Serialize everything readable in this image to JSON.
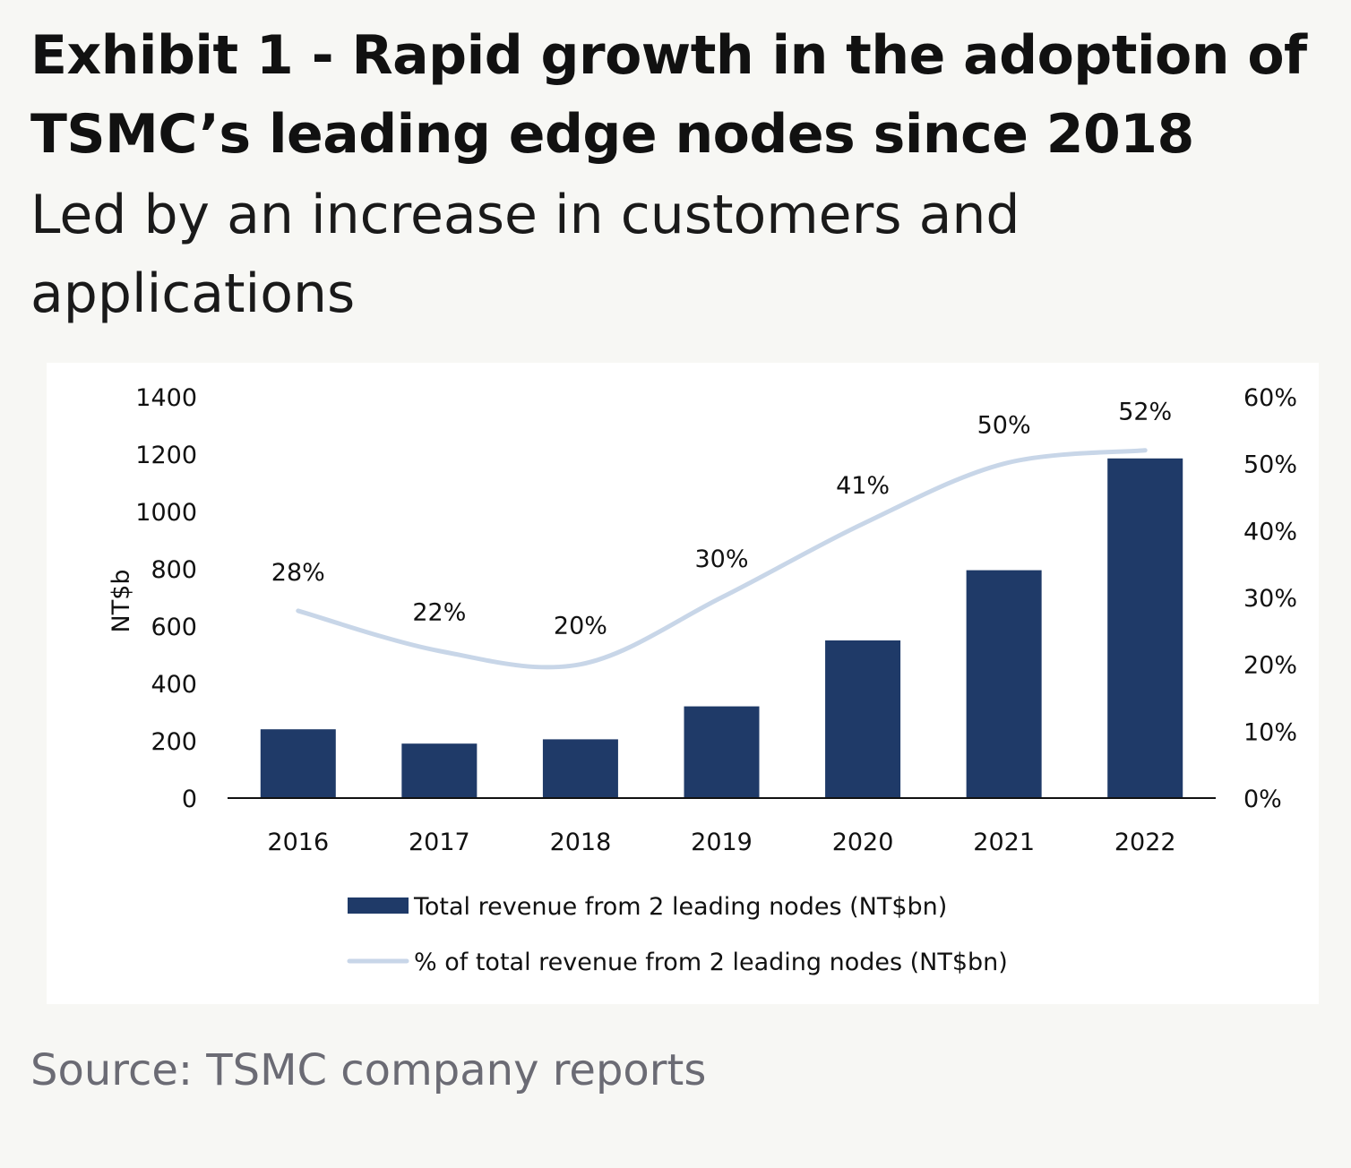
{
  "header": {
    "title": "Exhibit 1 - Rapid growth in the adoption of TSMC’s leading edge nodes since 2018",
    "subtitle": "Led by an increase in customers and applications"
  },
  "footer": {
    "source": "Source: TSMC company reports"
  },
  "colors": {
    "bar": "#1f3a68",
    "line": "#c8d6e8",
    "axis": "#111111"
  },
  "chart_data": {
    "type": "bar",
    "title": "",
    "categories": [
      "2016",
      "2017",
      "2018",
      "2019",
      "2020",
      "2021",
      "2022"
    ],
    "series": [
      {
        "name": "Total revenue from 2 leading nodes (NT$bn)",
        "type": "bar",
        "axis": "left",
        "values": [
          240,
          190,
          205,
          320,
          550,
          795,
          1185
        ]
      },
      {
        "name": "% of total revenue from 2 leading nodes (NT$bn)",
        "type": "line",
        "axis": "right",
        "values": [
          28,
          22,
          20,
          30,
          41,
          50,
          52
        ],
        "labels": [
          "28%",
          "22%",
          "20%",
          "30%",
          "41%",
          "50%",
          "52%"
        ]
      }
    ],
    "ylabel": "NT$b",
    "ylim": [
      0,
      1400
    ],
    "yticks": [
      "0",
      "200",
      "400",
      "600",
      "800",
      "1000",
      "1200",
      "1400"
    ],
    "y2lim": [
      0,
      60
    ],
    "y2ticks": [
      "0%",
      "10%",
      "20%",
      "30%",
      "40%",
      "50%",
      "60%"
    ],
    "legend_position": "bottom"
  }
}
